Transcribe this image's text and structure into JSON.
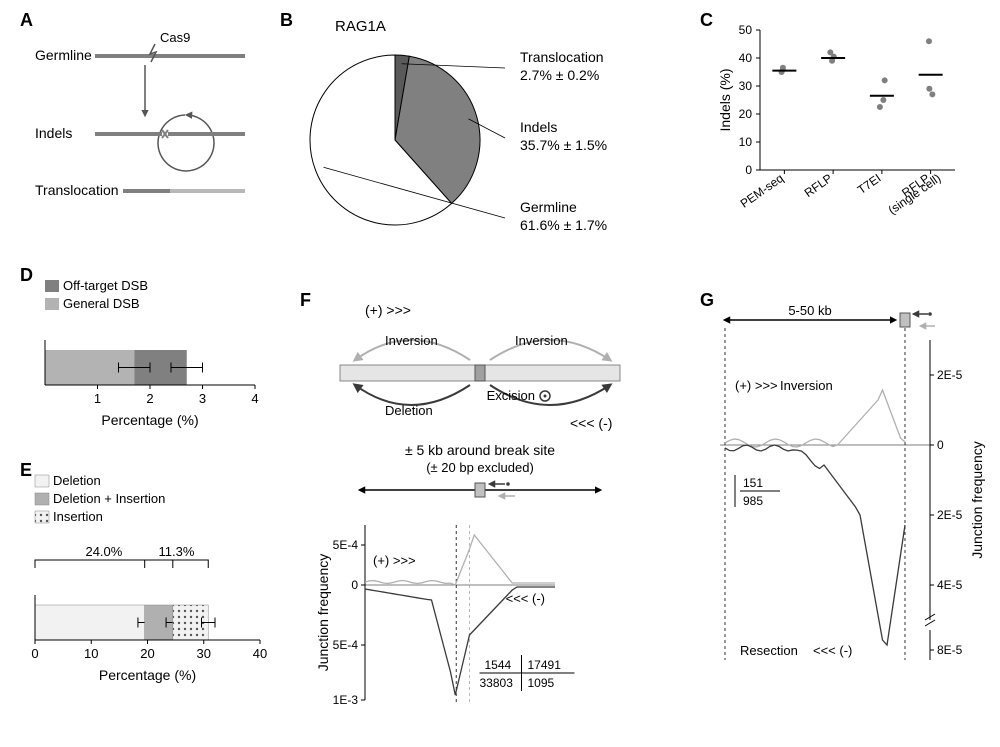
{
  "labels": {
    "A": "A",
    "B": "B",
    "C": "C",
    "D": "D",
    "E": "E",
    "F": "F",
    "G": "G"
  },
  "panelA": {
    "cas9": "Cas9",
    "germline": "Germline",
    "indels": "Indels",
    "translocation": "Translocation",
    "line_color": "#808080",
    "line_width": 4
  },
  "panelB": {
    "title": "RAG1A",
    "slices": [
      {
        "label": "Translocation",
        "value": 2.7,
        "err": 0.2,
        "color": "#5a5a5a",
        "text": "2.7% ± 0.2%"
      },
      {
        "label": "Indels",
        "value": 35.7,
        "err": 1.5,
        "color": "#808080",
        "text": "35.7% ± 1.5%"
      },
      {
        "label": "Germline",
        "value": 61.6,
        "err": 1.7,
        "color": "#ffffff",
        "text": "61.6% ± 1.7%"
      }
    ],
    "border": "#000000"
  },
  "panelC": {
    "ylabel": "Indels (%)",
    "ylim": [
      0,
      50
    ],
    "yticks": [
      0,
      10,
      20,
      30,
      40,
      50
    ],
    "categories": [
      "PEM-seq",
      "RFLP",
      "T7EI",
      "RFLP\n(single cell)"
    ],
    "points": [
      [
        35.0,
        35.8,
        36.5
      ],
      [
        39.0,
        40.5,
        42.0
      ],
      [
        22.5,
        25.0,
        32.0
      ],
      [
        27.0,
        29.0,
        46.0
      ]
    ],
    "means": [
      35.5,
      40.0,
      26.5,
      34.0
    ],
    "dot_color": "#808080",
    "line_color": "#000000"
  },
  "panelD": {
    "legend": [
      {
        "label": "Off-target  DSB",
        "color": "#808080"
      },
      {
        "label": "General DSB",
        "color": "#b3b3b3"
      }
    ],
    "xlabel": "Percentage  (%)",
    "xlim": [
      0,
      4
    ],
    "xticks": [
      1,
      2,
      3,
      4
    ],
    "off_target": 2.7,
    "general": 1.7,
    "err": 0.3
  },
  "panelE": {
    "legend": [
      {
        "label": "Deletion",
        "color": "#f2f2f2",
        "pattern": "none"
      },
      {
        "label": "Deletion + Insertion",
        "color": "#b0b0b0",
        "pattern": "none"
      },
      {
        "label": "Insertion",
        "color": "#d0d0d0",
        "pattern": "dots"
      }
    ],
    "xlabel": "Percentage  (%)",
    "xlim": [
      0,
      40
    ],
    "xticks": [
      0,
      10,
      20,
      30,
      40
    ],
    "segments": [
      19.5,
      24.5,
      30.8
    ],
    "bracket1": "24.0%",
    "bracket2": "11.3%"
  },
  "panelF": {
    "inversion": "Inversion",
    "deletion": "Deletion",
    "excision": "Excision",
    "plus": "(+) >>>",
    "minus": "<<< (-)",
    "caption": "± 5 kb around break site",
    "caption2": "(± 20 bp excluded)",
    "ylabel": "Junction frequency",
    "yticks": [
      "5E-4",
      "0",
      "5E-4",
      "1E-3"
    ],
    "box": [
      [
        "1544",
        "17491"
      ],
      [
        "33803",
        "1095"
      ]
    ],
    "light_line": "#b0b0b0",
    "dark_line": "#3a3a3a"
  },
  "panelG": {
    "range": "5-50 kb",
    "plus": "(+) >>>",
    "inversion": "Inversion",
    "resection": "Resection",
    "minus": "<<< (-)",
    "ylabel": "Junction frequency",
    "yticks": [
      "2E-5",
      "0",
      "2E-5",
      "4E-5",
      "8E-5"
    ],
    "box": [
      [
        "151"
      ],
      [
        "985"
      ]
    ],
    "light_line": "#b0b0b0",
    "dark_line": "#3a3a3a"
  }
}
